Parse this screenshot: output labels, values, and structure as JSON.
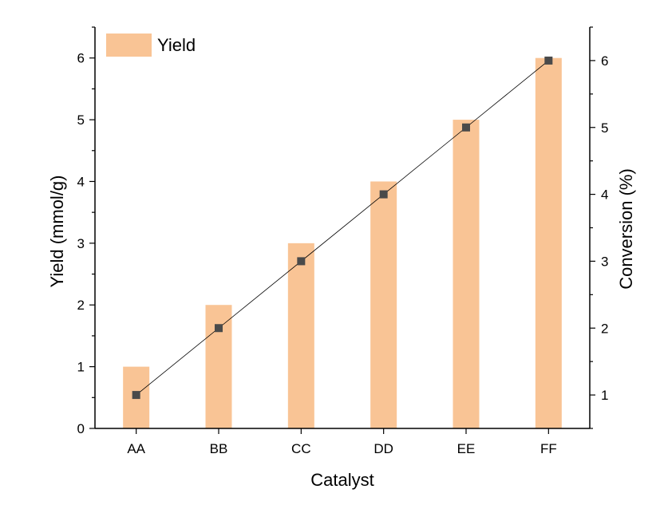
{
  "chart_data": {
    "type": "bar",
    "xlabel": "Catalyst",
    "ylabel_left": "Yield (mmol/g)",
    "ylabel_right": "Conversion (%)",
    "categories": [
      "AA",
      "BB",
      "CC",
      "DD",
      "EE",
      "FF"
    ],
    "series": [
      {
        "name": "Yield",
        "kind": "bar",
        "axis": "left",
        "values": [
          1,
          2,
          3,
          4,
          5,
          6
        ]
      },
      {
        "name": "Conversion",
        "kind": "line",
        "axis": "right",
        "values": [
          1,
          2,
          3,
          4,
          5,
          6
        ]
      }
    ],
    "ylim_left": [
      0,
      6.5
    ],
    "ylim_right": [
      0.5,
      6.5
    ],
    "yticks_left": [
      0,
      1,
      2,
      3,
      4,
      5,
      6
    ],
    "yticks_right": [
      1,
      2,
      3,
      4,
      5,
      6
    ],
    "legend": {
      "entries": [
        "Yield"
      ],
      "placement": "top-left"
    },
    "grid": false,
    "colors": {
      "bar": "#f9c495",
      "line": "#000000",
      "marker": "#4a4a4a",
      "axis": "#000000"
    }
  }
}
